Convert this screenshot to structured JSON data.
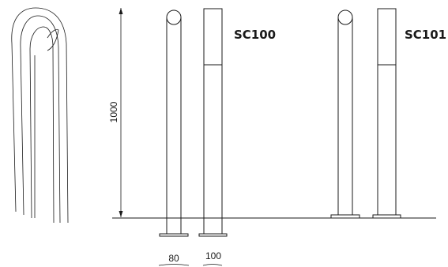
{
  "models": [
    {
      "code": "SC100"
    },
    {
      "code": "SC101"
    }
  ],
  "dimensions": {
    "height": "1000",
    "round_width": "80",
    "square_width": "100"
  },
  "colors": {
    "line": "#1a1a1a",
    "background": "#ffffff"
  }
}
